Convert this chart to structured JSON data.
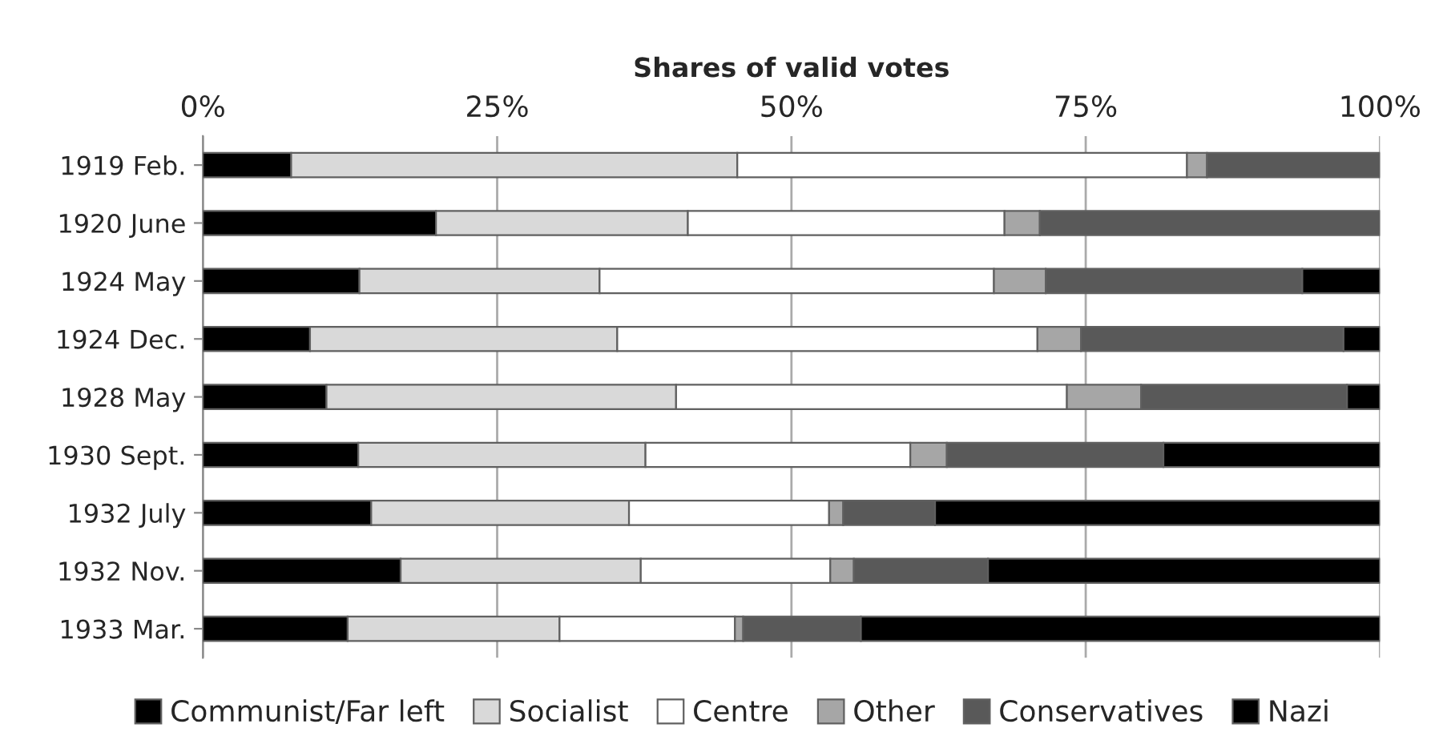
{
  "chart_data": {
    "type": "bar",
    "orientation": "horizontal",
    "stacked": true,
    "xlabel": "Shares of valid votes",
    "categories": [
      "1919 Feb.",
      "1920 June",
      "1924 May",
      "1924 Dec.",
      "1928 May",
      "1930 Sept.",
      "1932 July",
      "1932 Nov.",
      "1933 Mar."
    ],
    "series": [
      {
        "name": "Communist/Far left",
        "color": "#000000",
        "values": [
          7.5,
          19.8,
          13.3,
          9.1,
          10.5,
          13.2,
          14.3,
          16.8,
          12.3
        ]
      },
      {
        "name": "Socialist",
        "color": "#d9d9d9",
        "values": [
          37.9,
          21.4,
          20.4,
          26.1,
          29.7,
          24.4,
          21.9,
          20.4,
          18.0
        ]
      },
      {
        "name": "Centre",
        "color": "#ffffff",
        "values": [
          38.2,
          26.9,
          33.5,
          35.7,
          33.2,
          22.5,
          17.0,
          16.1,
          14.9
        ]
      },
      {
        "name": "Other",
        "color": "#a6a6a6",
        "values": [
          1.7,
          3.0,
          4.4,
          3.7,
          6.3,
          3.1,
          1.2,
          2.0,
          0.7
        ]
      },
      {
        "name": "Conservatives",
        "color": "#595959",
        "values": [
          14.7,
          28.9,
          21.8,
          22.3,
          17.5,
          18.4,
          7.8,
          11.4,
          10.0
        ]
      },
      {
        "name": "Nazi",
        "color": "#000000",
        "values": [
          0,
          0,
          6.6,
          3.1,
          2.8,
          18.4,
          37.8,
          33.3,
          44.1
        ]
      }
    ],
    "xlim": [
      0,
      100
    ],
    "xticks": [
      {
        "value": 0,
        "label": "0%"
      },
      {
        "value": 25,
        "label": "25%"
      },
      {
        "value": 50,
        "label": "50%"
      },
      {
        "value": 75,
        "label": "75%"
      },
      {
        "value": 100,
        "label": "100%"
      }
    ],
    "grid": "x",
    "legend": "bottom"
  }
}
